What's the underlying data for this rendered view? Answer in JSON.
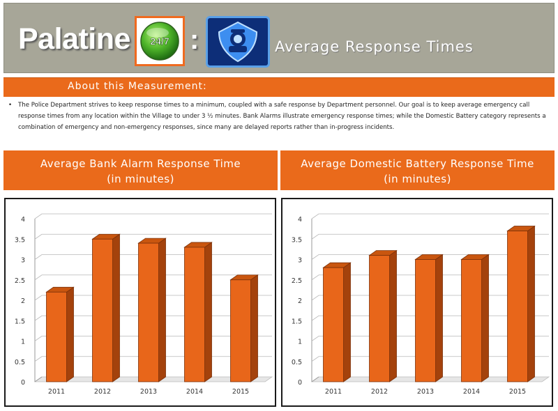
{
  "header": {
    "title": "Palatine",
    "badge_text": "24/7",
    "separator": ":",
    "subtitle": "Average Response Times"
  },
  "about": {
    "title": "About this Measurement:",
    "bullet": "•",
    "text": "The Police Department strives to keep response times to a minimum, coupled with a safe response by Department personnel. Our goal is to keep average emergency call response times from any location within the Village to under 3 ½ minutes. Bank Alarms illustrate emergency response times; while the Domestic Battery category represents a combination of emergency and non-emergency responses, since many are delayed reports rather than in-progress incidents."
  },
  "colors": {
    "bar_front": "#e8661a",
    "bar_side": "#a4420c",
    "bar_top": "#c9560f",
    "orange_band": "#ea6a1b",
    "header_bg": "#a7a698"
  },
  "chart_data": [
    {
      "type": "bar",
      "title": "Average Bank Alarm Response Time",
      "subtitle": "(in minutes)",
      "categories": [
        "2011",
        "2012",
        "2013",
        "2014",
        "2015"
      ],
      "values": [
        2.2,
        3.5,
        3.4,
        3.3,
        2.5
      ],
      "ylim": [
        0,
        4
      ],
      "yticks": [
        "0",
        "0.5",
        "1",
        "1.5",
        "2",
        "2.5",
        "3",
        "3.5",
        "4"
      ],
      "grid": true
    },
    {
      "type": "bar",
      "title": "Average Domestic Battery Response Time",
      "subtitle": "(in minutes)",
      "categories": [
        "2011",
        "2012",
        "2013",
        "2014",
        "2015"
      ],
      "values": [
        2.8,
        3.1,
        3.0,
        3.0,
        3.7
      ],
      "ylim": [
        0,
        4
      ],
      "yticks": [
        "0",
        "0.5",
        "1",
        "1.5",
        "2",
        "2.5",
        "3",
        "3.5",
        "4"
      ],
      "grid": true
    }
  ]
}
